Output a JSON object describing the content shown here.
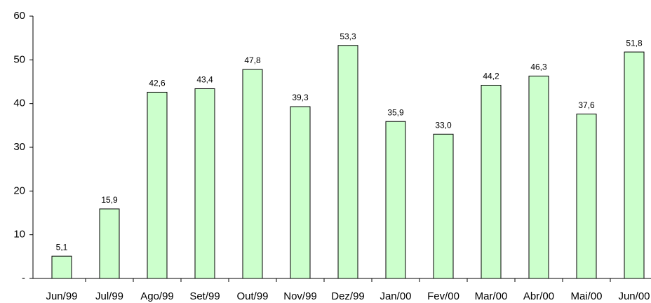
{
  "chart_data": {
    "type": "bar",
    "categories": [
      "Jun/99",
      "Jul/99",
      "Ago/99",
      "Set/99",
      "Out/99",
      "Nov/99",
      "Dez/99",
      "Jan/00",
      "Fev/00",
      "Mar/00",
      "Abr/00",
      "Mai/00",
      "Jun/00"
    ],
    "values": [
      5.1,
      15.9,
      42.6,
      43.4,
      47.8,
      39.3,
      53.3,
      35.9,
      33.0,
      44.2,
      46.3,
      37.6,
      51.8
    ],
    "value_labels": [
      "5,1",
      "15,9",
      "42,6",
      "43,4",
      "47,8",
      "39,3",
      "53,3",
      "35,9",
      "33,0",
      "44,2",
      "46,3",
      "37,6",
      "51,8"
    ],
    "color": "#ccffcc",
    "ylim": [
      0,
      60
    ],
    "yticks": [
      {
        "value": 0,
        "label": "-"
      },
      10,
      20,
      30,
      40,
      50,
      60
    ]
  }
}
